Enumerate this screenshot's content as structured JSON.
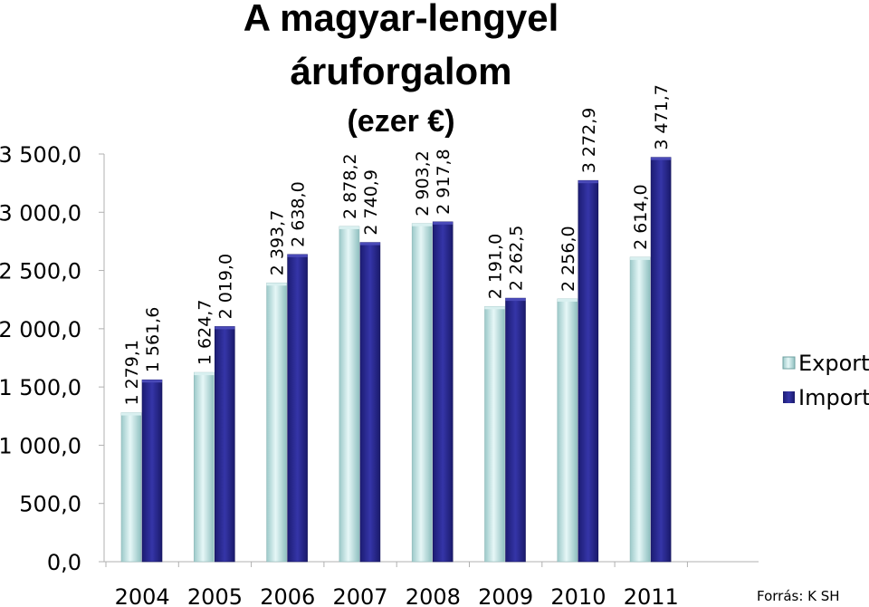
{
  "chart_data": {
    "type": "bar",
    "title": [
      "A magyar-lengyel",
      "áruforgalom"
    ],
    "subtitle": "(ezer €)",
    "categories": [
      "2004",
      "2005",
      "2006",
      "2007",
      "2008",
      "2009",
      "2010",
      "2011"
    ],
    "series": [
      {
        "name": "Export",
        "color": "#bfe6e6",
        "values": [
          1279.1,
          1624.7,
          2393.7,
          2878.2,
          2903.2,
          2191.0,
          2256.0,
          2614.0
        ],
        "labels": [
          "1 279,1",
          "1 624,7",
          "2 393,7",
          "2 878,2",
          "2 903,2",
          "2 191,0",
          "2 256,0",
          "2 614,0"
        ]
      },
      {
        "name": "Import",
        "color": "#2b2b8f",
        "values": [
          1561.6,
          2019.0,
          2638.0,
          2740.9,
          2917.8,
          2262.5,
          3272.9,
          3471.7
        ],
        "labels": [
          "1 561,6",
          "2 019,0",
          "2 638,0",
          "2 740,9",
          "2 917,8",
          "2 262,5",
          "3 272,9",
          "3 471,7"
        ]
      }
    ],
    "ylim": [
      0,
      3500
    ],
    "yticks": [
      0,
      500,
      1000,
      1500,
      2000,
      2500,
      3000,
      3500
    ],
    "ytick_labels": [
      "0,0",
      "500,0",
      "1 000,0",
      "1 500,0",
      "2 000,0",
      "2 500,0",
      "3 000,0",
      "3 500,0"
    ],
    "grid": false,
    "legend": "right",
    "source": "Forrás:  K SH"
  }
}
